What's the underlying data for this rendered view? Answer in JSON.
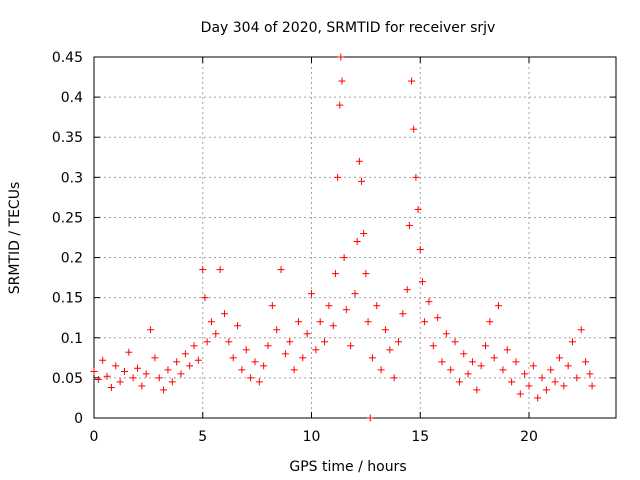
{
  "chart_data": {
    "type": "scatter",
    "title": "Day 304 of 2020, SRMTID for receiver srjv",
    "xlabel": "GPS time / hours",
    "ylabel": "SRMTID / TECUs",
    "xlim": [
      0,
      24
    ],
    "ylim": [
      0,
      0.45
    ],
    "xticks": [
      0,
      5,
      10,
      15,
      20
    ],
    "xtick_labels": [
      "0",
      "5",
      "10",
      "15",
      "20"
    ],
    "yticks": [
      0,
      0.05,
      0.1,
      0.15,
      0.2,
      0.25,
      0.3,
      0.35,
      0.4,
      0.45
    ],
    "ytick_labels": [
      "0",
      "0.05",
      "0.1",
      "0.15",
      "0.2",
      "0.25",
      "0.3",
      "0.35",
      "0.4",
      "0.45"
    ],
    "grid": true,
    "marker": "+",
    "color": "#ff0000",
    "series": [
      {
        "name": "SRMTID",
        "points": [
          [
            0.0,
            0.058
          ],
          [
            0.2,
            0.048
          ],
          [
            0.4,
            0.072
          ],
          [
            0.6,
            0.052
          ],
          [
            0.8,
            0.038
          ],
          [
            1.0,
            0.065
          ],
          [
            1.2,
            0.045
          ],
          [
            1.4,
            0.058
          ],
          [
            1.6,
            0.082
          ],
          [
            1.8,
            0.05
          ],
          [
            2.0,
            0.062
          ],
          [
            2.2,
            0.04
          ],
          [
            2.4,
            0.055
          ],
          [
            2.6,
            0.11
          ],
          [
            2.8,
            0.075
          ],
          [
            3.0,
            0.05
          ],
          [
            3.2,
            0.035
          ],
          [
            3.4,
            0.06
          ],
          [
            3.6,
            0.045
          ],
          [
            3.8,
            0.07
          ],
          [
            4.0,
            0.055
          ],
          [
            4.2,
            0.08
          ],
          [
            4.4,
            0.065
          ],
          [
            4.6,
            0.09
          ],
          [
            4.8,
            0.072
          ],
          [
            5.0,
            0.185
          ],
          [
            5.1,
            0.15
          ],
          [
            5.2,
            0.095
          ],
          [
            5.4,
            0.12
          ],
          [
            5.6,
            0.105
          ],
          [
            5.8,
            0.185
          ],
          [
            6.0,
            0.13
          ],
          [
            6.2,
            0.095
          ],
          [
            6.4,
            0.075
          ],
          [
            6.6,
            0.115
          ],
          [
            6.8,
            0.06
          ],
          [
            7.0,
            0.085
          ],
          [
            7.2,
            0.05
          ],
          [
            7.4,
            0.07
          ],
          [
            7.6,
            0.045
          ],
          [
            7.8,
            0.065
          ],
          [
            8.0,
            0.09
          ],
          [
            8.2,
            0.14
          ],
          [
            8.4,
            0.11
          ],
          [
            8.6,
            0.185
          ],
          [
            8.8,
            0.08
          ],
          [
            9.0,
            0.095
          ],
          [
            9.2,
            0.06
          ],
          [
            9.4,
            0.12
          ],
          [
            9.6,
            0.075
          ],
          [
            9.8,
            0.105
          ],
          [
            10.0,
            0.155
          ],
          [
            10.2,
            0.085
          ],
          [
            10.4,
            0.12
          ],
          [
            10.6,
            0.095
          ],
          [
            10.8,
            0.14
          ],
          [
            11.0,
            0.115
          ],
          [
            11.1,
            0.18
          ],
          [
            11.2,
            0.3
          ],
          [
            11.3,
            0.39
          ],
          [
            11.35,
            0.45
          ],
          [
            11.4,
            0.42
          ],
          [
            11.5,
            0.2
          ],
          [
            11.6,
            0.135
          ],
          [
            11.8,
            0.09
          ],
          [
            12.0,
            0.155
          ],
          [
            12.1,
            0.22
          ],
          [
            12.2,
            0.32
          ],
          [
            12.3,
            0.295
          ],
          [
            12.4,
            0.23
          ],
          [
            12.5,
            0.18
          ],
          [
            12.6,
            0.12
          ],
          [
            12.7,
            0.0
          ],
          [
            12.8,
            0.075
          ],
          [
            13.0,
            0.14
          ],
          [
            13.2,
            0.06
          ],
          [
            13.4,
            0.11
          ],
          [
            13.6,
            0.085
          ],
          [
            13.8,
            0.05
          ],
          [
            14.0,
            0.095
          ],
          [
            14.2,
            0.13
          ],
          [
            14.4,
            0.16
          ],
          [
            14.5,
            0.24
          ],
          [
            14.6,
            0.42
          ],
          [
            14.7,
            0.36
          ],
          [
            14.8,
            0.3
          ],
          [
            14.9,
            0.26
          ],
          [
            15.0,
            0.21
          ],
          [
            15.1,
            0.17
          ],
          [
            15.2,
            0.12
          ],
          [
            15.4,
            0.145
          ],
          [
            15.6,
            0.09
          ],
          [
            15.8,
            0.125
          ],
          [
            16.0,
            0.07
          ],
          [
            16.2,
            0.105
          ],
          [
            16.4,
            0.06
          ],
          [
            16.6,
            0.095
          ],
          [
            16.8,
            0.045
          ],
          [
            17.0,
            0.08
          ],
          [
            17.2,
            0.055
          ],
          [
            17.4,
            0.07
          ],
          [
            17.6,
            0.035
          ],
          [
            17.8,
            0.065
          ],
          [
            18.0,
            0.09
          ],
          [
            18.2,
            0.12
          ],
          [
            18.4,
            0.075
          ],
          [
            18.6,
            0.14
          ],
          [
            18.8,
            0.06
          ],
          [
            19.0,
            0.085
          ],
          [
            19.2,
            0.045
          ],
          [
            19.4,
            0.07
          ],
          [
            19.6,
            0.03
          ],
          [
            19.8,
            0.055
          ],
          [
            20.0,
            0.04
          ],
          [
            20.2,
            0.065
          ],
          [
            20.4,
            0.025
          ],
          [
            20.6,
            0.05
          ],
          [
            20.8,
            0.035
          ],
          [
            21.0,
            0.06
          ],
          [
            21.2,
            0.045
          ],
          [
            21.4,
            0.075
          ],
          [
            21.6,
            0.04
          ],
          [
            21.8,
            0.065
          ],
          [
            22.0,
            0.095
          ],
          [
            22.2,
            0.05
          ],
          [
            22.4,
            0.11
          ],
          [
            22.6,
            0.07
          ],
          [
            22.8,
            0.055
          ],
          [
            22.9,
            0.04
          ]
        ]
      }
    ]
  }
}
